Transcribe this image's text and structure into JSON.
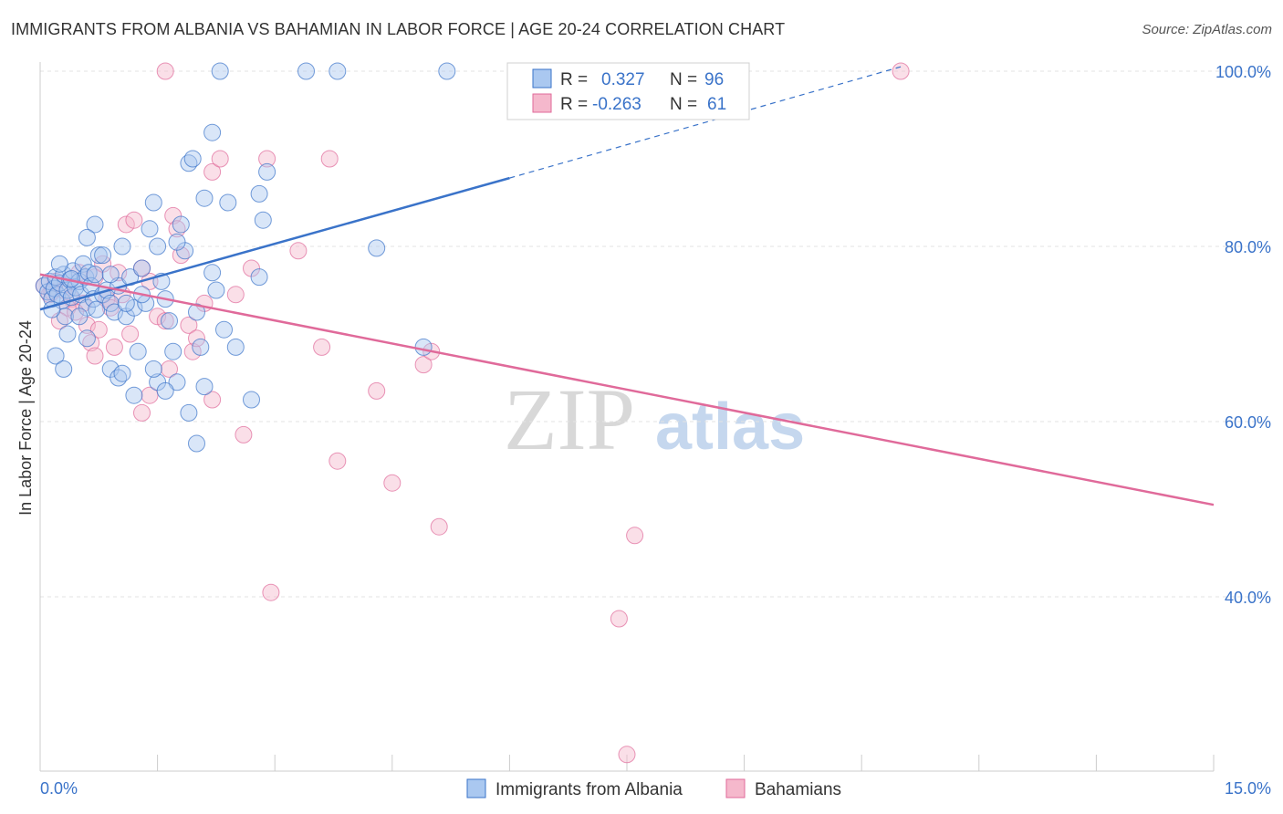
{
  "title": "IMMIGRANTS FROM ALBANIA VS BAHAMIAN IN LABOR FORCE | AGE 20-24 CORRELATION CHART",
  "source": "Source: ZipAtlas.com",
  "watermark": {
    "zip": "ZIP",
    "atlas": "atlas"
  },
  "colors": {
    "blue": "#3a73c9",
    "blue_fill": "#aac8f0",
    "pink": "#e06a9a",
    "pink_fill": "#f5b8cc",
    "grid": "#e3e3e3",
    "tick_label": "#3a73c9"
  },
  "legend_box": {
    "rows": [
      {
        "r_label": "R =",
        "r_value": "0.327",
        "n_label": "N =",
        "n_value": "96"
      },
      {
        "r_label": "R =",
        "r_value": "-0.263",
        "n_label": "N =",
        "n_value": "61"
      }
    ]
  },
  "chart_data": {
    "type": "scatter",
    "title": "IMMIGRANTS FROM ALBANIA VS BAHAMIAN IN LABOR FORCE | AGE 20-24 CORRELATION CHART",
    "xlabel": "",
    "ylabel": "In Labor Force | Age 20-24",
    "xlim": [
      0,
      15
    ],
    "ylim": [
      20,
      102
    ],
    "x_tick_labels": [
      {
        "value": 0,
        "label": "0.0%"
      },
      {
        "value": 15,
        "label": "15.0%"
      }
    ],
    "y_tick_labels": [
      {
        "value": 100,
        "label": "100.0%"
      },
      {
        "value": 80,
        "label": "80.0%"
      },
      {
        "value": 60,
        "label": "60.0%"
      },
      {
        "value": 40,
        "label": "40.0%"
      }
    ],
    "legend": "bottom-center",
    "series": [
      {
        "name": "Immigrants from Albania",
        "color": "#3a73c9",
        "R": 0.327,
        "N": 96,
        "trend": {
          "x": [
            0.0,
            6.0
          ],
          "y": [
            72.8,
            87.8
          ]
        },
        "trend_dashed": {
          "x": [
            6.0,
            11.0
          ],
          "y": [
            87.8,
            100.5
          ]
        },
        "points": [
          [
            0.05,
            75.5
          ],
          [
            0.1,
            74.8
          ],
          [
            0.12,
            76.0
          ],
          [
            0.15,
            74.0
          ],
          [
            0.18,
            75.2
          ],
          [
            0.2,
            76.5
          ],
          [
            0.22,
            74.5
          ],
          [
            0.25,
            75.8
          ],
          [
            0.28,
            73.8
          ],
          [
            0.3,
            76.8
          ],
          [
            0.32,
            72.0
          ],
          [
            0.35,
            75.0
          ],
          [
            0.38,
            76.2
          ],
          [
            0.4,
            74.2
          ],
          [
            0.42,
            77.2
          ],
          [
            0.45,
            75.3
          ],
          [
            0.5,
            76.0
          ],
          [
            0.52,
            74.5
          ],
          [
            0.55,
            78.0
          ],
          [
            0.58,
            76.5
          ],
          [
            0.6,
            73.0
          ],
          [
            0.62,
            77.0
          ],
          [
            0.65,
            75.5
          ],
          [
            0.68,
            74.0
          ],
          [
            0.7,
            76.8
          ],
          [
            0.72,
            72.8
          ],
          [
            0.75,
            79.0
          ],
          [
            0.8,
            74.5
          ],
          [
            0.85,
            75.0
          ],
          [
            0.9,
            73.5
          ],
          [
            0.95,
            72.5
          ],
          [
            1.0,
            75.5
          ],
          [
            1.05,
            80.0
          ],
          [
            1.1,
            72.0
          ],
          [
            1.15,
            76.5
          ],
          [
            1.2,
            73.0
          ],
          [
            1.25,
            68.0
          ],
          [
            1.3,
            77.5
          ],
          [
            1.35,
            73.5
          ],
          [
            1.4,
            82.0
          ],
          [
            1.45,
            85.0
          ],
          [
            1.5,
            80.0
          ],
          [
            1.55,
            76.0
          ],
          [
            1.6,
            74.0
          ],
          [
            1.65,
            71.5
          ],
          [
            1.7,
            68.0
          ],
          [
            1.75,
            64.5
          ],
          [
            1.8,
            82.5
          ],
          [
            1.85,
            79.5
          ],
          [
            1.9,
            89.5
          ],
          [
            1.95,
            90.0
          ],
          [
            2.0,
            72.5
          ],
          [
            2.05,
            68.5
          ],
          [
            2.1,
            64.0
          ],
          [
            2.2,
            77.0
          ],
          [
            2.25,
            75.0
          ],
          [
            2.35,
            70.5
          ],
          [
            2.4,
            85.0
          ],
          [
            2.5,
            68.5
          ],
          [
            2.8,
            86.0
          ],
          [
            2.85,
            83.0
          ],
          [
            2.9,
            88.5
          ],
          [
            0.2,
            67.5
          ],
          [
            0.3,
            66.0
          ],
          [
            0.5,
            72.0
          ],
          [
            0.6,
            69.5
          ],
          [
            0.9,
            66.0
          ],
          [
            1.0,
            65.0
          ],
          [
            1.2,
            63.0
          ],
          [
            1.5,
            64.5
          ],
          [
            1.9,
            61.0
          ],
          [
            2.0,
            57.5
          ],
          [
            2.2,
            93.0
          ],
          [
            2.7,
            62.5
          ],
          [
            2.3,
            100.0
          ],
          [
            3.4,
            100.0
          ],
          [
            3.8,
            100.0
          ],
          [
            5.2,
            100.0
          ],
          [
            4.3,
            79.8
          ],
          [
            4.9,
            68.5
          ],
          [
            0.7,
            82.5
          ],
          [
            0.6,
            81.0
          ],
          [
            0.8,
            79.0
          ],
          [
            1.3,
            74.5
          ],
          [
            0.35,
            70.0
          ],
          [
            1.05,
            65.5
          ],
          [
            1.45,
            66.0
          ],
          [
            1.6,
            63.5
          ],
          [
            0.25,
            78.0
          ],
          [
            0.4,
            76.3
          ],
          [
            0.9,
            76.8
          ],
          [
            1.1,
            73.5
          ],
          [
            1.75,
            80.5
          ],
          [
            2.1,
            85.5
          ],
          [
            2.8,
            76.5
          ],
          [
            0.15,
            72.8
          ]
        ]
      },
      {
        "name": "Bahamians",
        "color": "#e06a9a",
        "R": -0.263,
        "N": 61,
        "trend": {
          "x": [
            0.0,
            15.0
          ],
          "y": [
            76.8,
            50.5
          ]
        },
        "points": [
          [
            0.05,
            75.5
          ],
          [
            0.12,
            74.5
          ],
          [
            0.2,
            76.0
          ],
          [
            0.3,
            75.0
          ],
          [
            0.4,
            74.0
          ],
          [
            0.5,
            77.0
          ],
          [
            0.55,
            73.5
          ],
          [
            0.6,
            71.0
          ],
          [
            0.65,
            69.0
          ],
          [
            0.7,
            76.5
          ],
          [
            0.8,
            78.0
          ],
          [
            0.85,
            74.0
          ],
          [
            0.9,
            73.0
          ],
          [
            1.0,
            77.0
          ],
          [
            1.05,
            74.5
          ],
          [
            1.1,
            82.5
          ],
          [
            1.2,
            83.0
          ],
          [
            1.3,
            77.5
          ],
          [
            1.4,
            76.0
          ],
          [
            1.5,
            72.0
          ],
          [
            1.6,
            71.5
          ],
          [
            1.7,
            83.5
          ],
          [
            1.75,
            82.0
          ],
          [
            1.8,
            79.0
          ],
          [
            1.9,
            71.0
          ],
          [
            1.95,
            68.0
          ],
          [
            2.1,
            73.5
          ],
          [
            2.2,
            88.5
          ],
          [
            2.3,
            90.0
          ],
          [
            2.5,
            74.5
          ],
          [
            2.7,
            77.5
          ],
          [
            2.9,
            90.0
          ],
          [
            3.3,
            79.5
          ],
          [
            3.7,
            90.0
          ],
          [
            3.6,
            68.5
          ],
          [
            3.8,
            55.5
          ],
          [
            4.3,
            63.5
          ],
          [
            4.5,
            53.0
          ],
          [
            4.9,
            66.5
          ],
          [
            5.0,
            68.0
          ],
          [
            5.1,
            48.0
          ],
          [
            2.6,
            58.5
          ],
          [
            2.95,
            40.5
          ],
          [
            7.4,
            37.5
          ],
          [
            7.6,
            47.0
          ],
          [
            7.5,
            22.0
          ],
          [
            1.6,
            100.0
          ],
          [
            11.0,
            100.0
          ],
          [
            1.3,
            61.0
          ],
          [
            1.4,
            63.0
          ],
          [
            2.2,
            62.5
          ],
          [
            0.7,
            67.5
          ],
          [
            0.35,
            73.0
          ],
          [
            0.45,
            72.5
          ],
          [
            1.65,
            66.0
          ],
          [
            0.25,
            71.5
          ],
          [
            0.95,
            68.5
          ],
          [
            1.15,
            70.0
          ],
          [
            2.0,
            69.5
          ],
          [
            0.15,
            74.8
          ],
          [
            0.75,
            70.5
          ]
        ]
      }
    ]
  }
}
